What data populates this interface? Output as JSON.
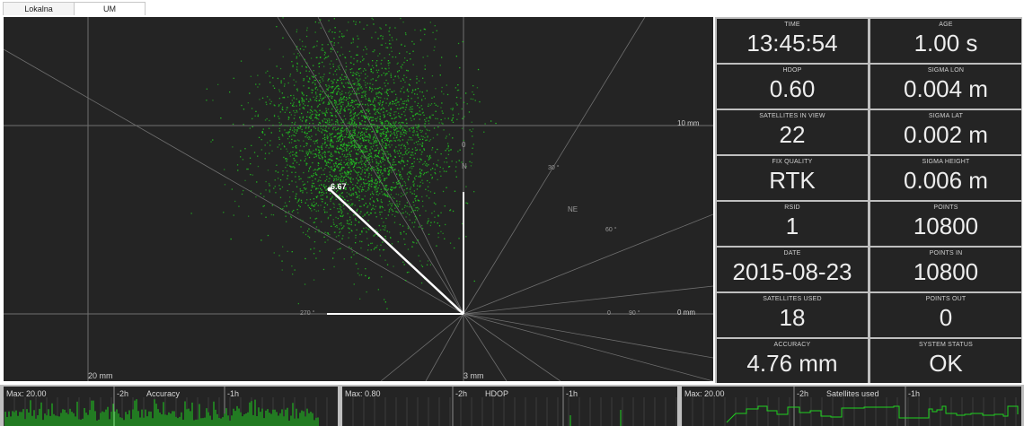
{
  "tabs": [
    {
      "label": "Lokalna",
      "active": false
    },
    {
      "label": "UM",
      "active": true
    }
  ],
  "plot": {
    "labels": {
      "top_right": "10 mm",
      "right_mid": "0 mm",
      "bottom_left": "20 mm",
      "bottom_center": "3 mm",
      "north": "N",
      "northeast": "NE",
      "zero": "0",
      "angle_a": "30 °",
      "angle_b": "60 °",
      "angle_270": "270 °",
      "angle_0": "0",
      "angle_90": "90 °",
      "point_value": "6.67"
    },
    "colors": {
      "background": "#242424",
      "point": "#22c322",
      "grid": "#6f6f6f",
      "vector": "#ffffff"
    },
    "point_count": 10800
  },
  "stats": [
    {
      "label": "TIME",
      "value": "13:45:54"
    },
    {
      "label": "AGE",
      "value": "1.00 s"
    },
    {
      "label": "HDOP",
      "value": "0.60"
    },
    {
      "label": "SIGMA LON",
      "value": "0.004 m"
    },
    {
      "label": "SATELLITES IN VIEW",
      "value": "22"
    },
    {
      "label": "SIGMA LAT",
      "value": "0.002 m"
    },
    {
      "label": "FIX QUALITY",
      "value": "RTK"
    },
    {
      "label": "SIGMA HEIGHT",
      "value": "0.006 m"
    },
    {
      "label": "RSID",
      "value": "1"
    },
    {
      "label": "POINTS",
      "value": "10800"
    },
    {
      "label": "DATE",
      "value": "2015-08-23"
    },
    {
      "label": "POINTS IN",
      "value": "10800"
    },
    {
      "label": "SATELLITES USED",
      "value": "18"
    },
    {
      "label": "POINTS OUT",
      "value": "0"
    },
    {
      "label": "ACCURACY",
      "value": "4.76 mm"
    },
    {
      "label": "SYSTEM STATUS",
      "value": "OK"
    }
  ],
  "charts": [
    {
      "max": "Max: 20.00",
      "t2": "-2h",
      "title": "Accuracy",
      "t1": "-1h"
    },
    {
      "max": "Max: 0.80",
      "t2": "-2h",
      "title": "HDOP",
      "t1": "-1h"
    },
    {
      "max": "Max: 20.00",
      "t2": "-2h",
      "title": "Satellites used",
      "t1": "-1h"
    }
  ]
}
